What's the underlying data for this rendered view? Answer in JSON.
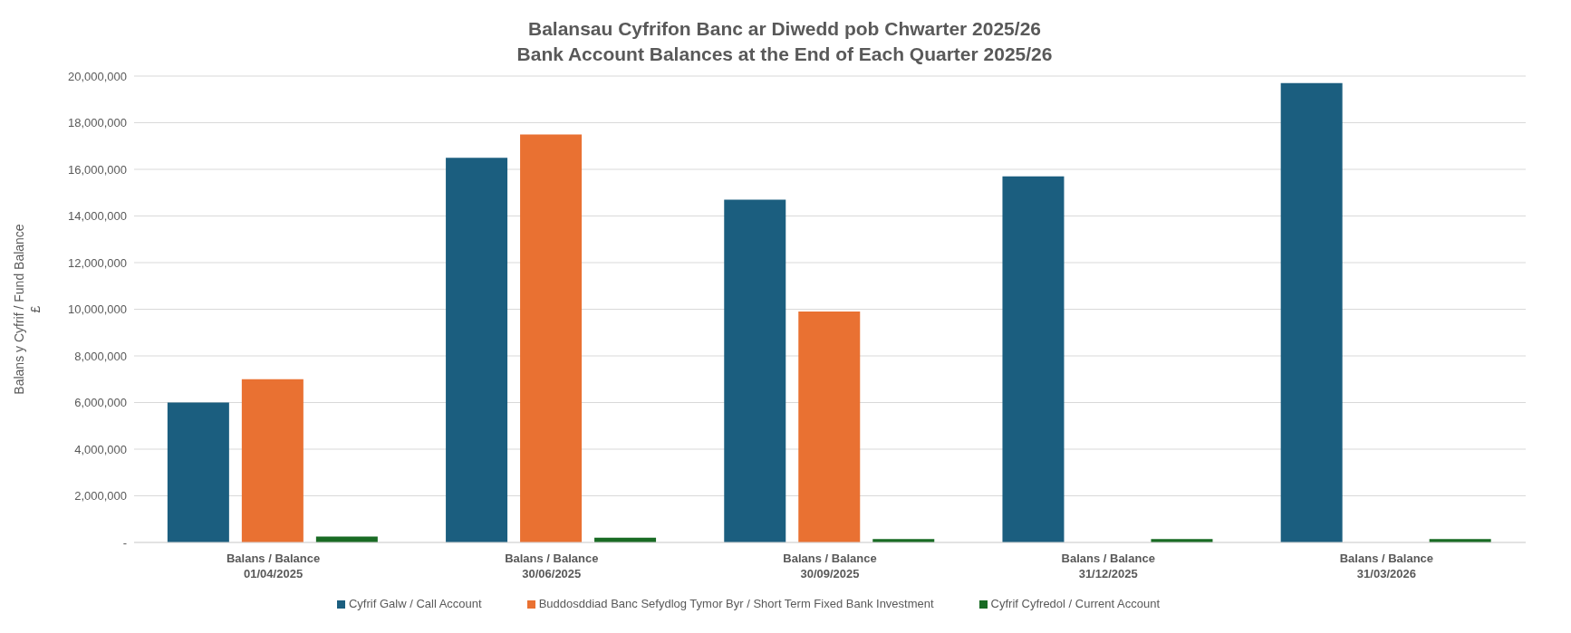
{
  "chart_data": {
    "type": "bar",
    "title": "Balansau Cyfrifon Banc ar Diwedd pob Chwarter 2025/26",
    "subtitle": "Bank Account Balances at the End of Each Quarter 2025/26",
    "ylabel": "Balans y Cyfrif / Fund Balance\n£",
    "categories": [
      "Balans / Balance\n01/04/2025",
      "Balans / Balance\n30/06/2025",
      "Balans / Balance\n30/09/2025",
      "Balans / Balance\n31/12/2025",
      "Balans / Balance\n31/03/2026"
    ],
    "series": [
      {
        "name": "Cyfrif Galw / Call Account",
        "color": "#1b5e7f",
        "values": [
          6000000,
          16500000,
          14700000,
          15700000,
          19700000
        ]
      },
      {
        "name": "Buddosddiad Banc Sefydlog Tymor Byr / Short Term Fixed Bank Investment",
        "color": "#e97132",
        "values": [
          7000000,
          17500000,
          9900000,
          0,
          0
        ]
      },
      {
        "name": "Cyfrif Cyfredol / Current Account",
        "color": "#196b24",
        "values": [
          250000,
          200000,
          150000,
          150000,
          150000
        ]
      }
    ],
    "ylim": [
      0,
      20000000
    ],
    "yticks": [
      {
        "value": 0,
        "label": "-"
      },
      {
        "value": 2000000,
        "label": "2,000,000"
      },
      {
        "value": 4000000,
        "label": "4,000,000"
      },
      {
        "value": 6000000,
        "label": "6,000,000"
      },
      {
        "value": 8000000,
        "label": "8,000,000"
      },
      {
        "value": 10000000,
        "label": "10,000,000"
      },
      {
        "value": 12000000,
        "label": "12,000,000"
      },
      {
        "value": 14000000,
        "label": "14,000,000"
      },
      {
        "value": 16000000,
        "label": "16,000,000"
      },
      {
        "value": 18000000,
        "label": "18,000,000"
      },
      {
        "value": 20000000,
        "label": "20,000,000"
      }
    ],
    "grid": "y",
    "legend": "bottom"
  }
}
